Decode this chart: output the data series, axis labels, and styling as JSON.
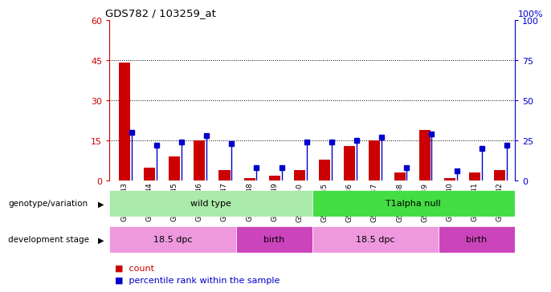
{
  "title": "GDS782 / 103259_at",
  "samples": [
    "GSM22043",
    "GSM22044",
    "GSM22045",
    "GSM22046",
    "GSM22047",
    "GSM22048",
    "GSM22049",
    "GSM22050",
    "GSM22035",
    "GSM22036",
    "GSM22037",
    "GSM22038",
    "GSM22039",
    "GSM22040",
    "GSM22041",
    "GSM22042"
  ],
  "counts": [
    44,
    5,
    9,
    15,
    4,
    1,
    2,
    4,
    8,
    13,
    15,
    3,
    19,
    1,
    3,
    4
  ],
  "percentiles": [
    30,
    22,
    24,
    28,
    23,
    8,
    8,
    24,
    24,
    25,
    27,
    8,
    29,
    6,
    20,
    22
  ],
  "ylim_left": [
    0,
    60
  ],
  "ylim_right": [
    0,
    100
  ],
  "yticks_left": [
    0,
    15,
    30,
    45,
    60
  ],
  "yticks_right": [
    0,
    25,
    50,
    75,
    100
  ],
  "bar_color_red": "#cc0000",
  "bar_color_blue": "#0000cc",
  "bg_color": "#ffffff",
  "genotype_groups": [
    {
      "label": "wild type",
      "start": 0,
      "end": 7,
      "color": "#aaeaaa"
    },
    {
      "label": "T1alpha null",
      "start": 8,
      "end": 15,
      "color": "#44dd44"
    }
  ],
  "stage_groups": [
    {
      "label": "18.5 dpc",
      "start": 0,
      "end": 4,
      "color": "#ee99dd"
    },
    {
      "label": "birth",
      "start": 5,
      "end": 7,
      "color": "#cc44bb"
    },
    {
      "label": "18.5 dpc",
      "start": 8,
      "end": 12,
      "color": "#ee99dd"
    },
    {
      "label": "birth",
      "start": 13,
      "end": 15,
      "color": "#cc44bb"
    }
  ],
  "legend_items": [
    {
      "label": "count",
      "color": "#cc0000"
    },
    {
      "label": "percentile rank within the sample",
      "color": "#0000cc"
    }
  ],
  "genotype_label": "genotype/variation",
  "stage_label": "development stage"
}
